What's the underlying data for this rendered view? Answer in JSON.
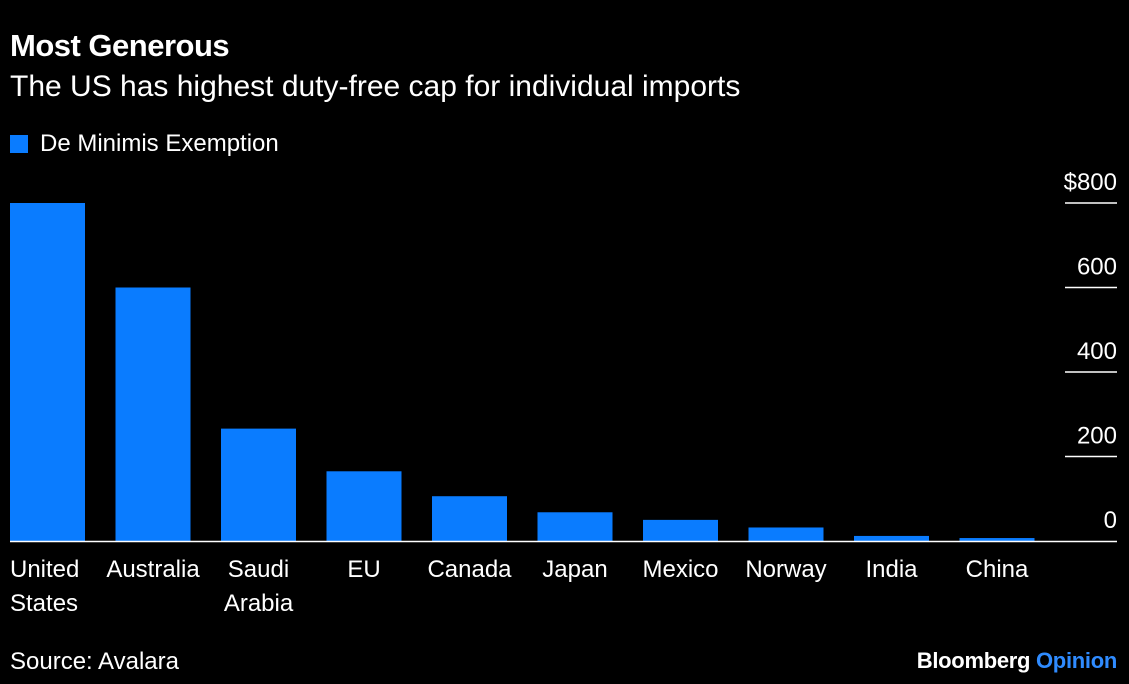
{
  "header": {
    "title": "Most Generous",
    "subtitle": "The US has highest duty-free cap for individual imports"
  },
  "legend": {
    "label": "De Minimis Exemption"
  },
  "footer": {
    "source": "Source: Avalara",
    "brand_name": "Bloomberg",
    "brand_sub": "Opinion"
  },
  "colors": {
    "bar": "#0a7cff",
    "brand_accent": "#2f8bff",
    "text": "#ffffff",
    "background": "#000000"
  },
  "chart_data": {
    "type": "bar",
    "title": "Most Generous",
    "subtitle": "The US has highest duty-free cap for individual imports",
    "xlabel": "",
    "ylabel": "",
    "categories": [
      [
        "United",
        "States"
      ],
      [
        "Australia"
      ],
      [
        "Saudi",
        "Arabia"
      ],
      [
        "EU"
      ],
      [
        "Canada"
      ],
      [
        "Japan"
      ],
      [
        "Mexico"
      ],
      [
        "Norway"
      ],
      [
        "India"
      ],
      [
        "China"
      ]
    ],
    "series": [
      {
        "name": "De Minimis Exemption",
        "values": [
          800,
          600,
          266,
          165,
          106,
          68,
          50,
          32,
          12,
          7
        ]
      }
    ],
    "ylim": [
      0,
      800
    ],
    "y_ticks": [
      {
        "value": 0,
        "label": "0"
      },
      {
        "value": 200,
        "label": "200"
      },
      {
        "value": 400,
        "label": "400"
      },
      {
        "value": 600,
        "label": "600"
      },
      {
        "value": 800,
        "label": "$800"
      }
    ],
    "y_axis_side": "right",
    "legend_position": "top-left",
    "grid": false
  }
}
